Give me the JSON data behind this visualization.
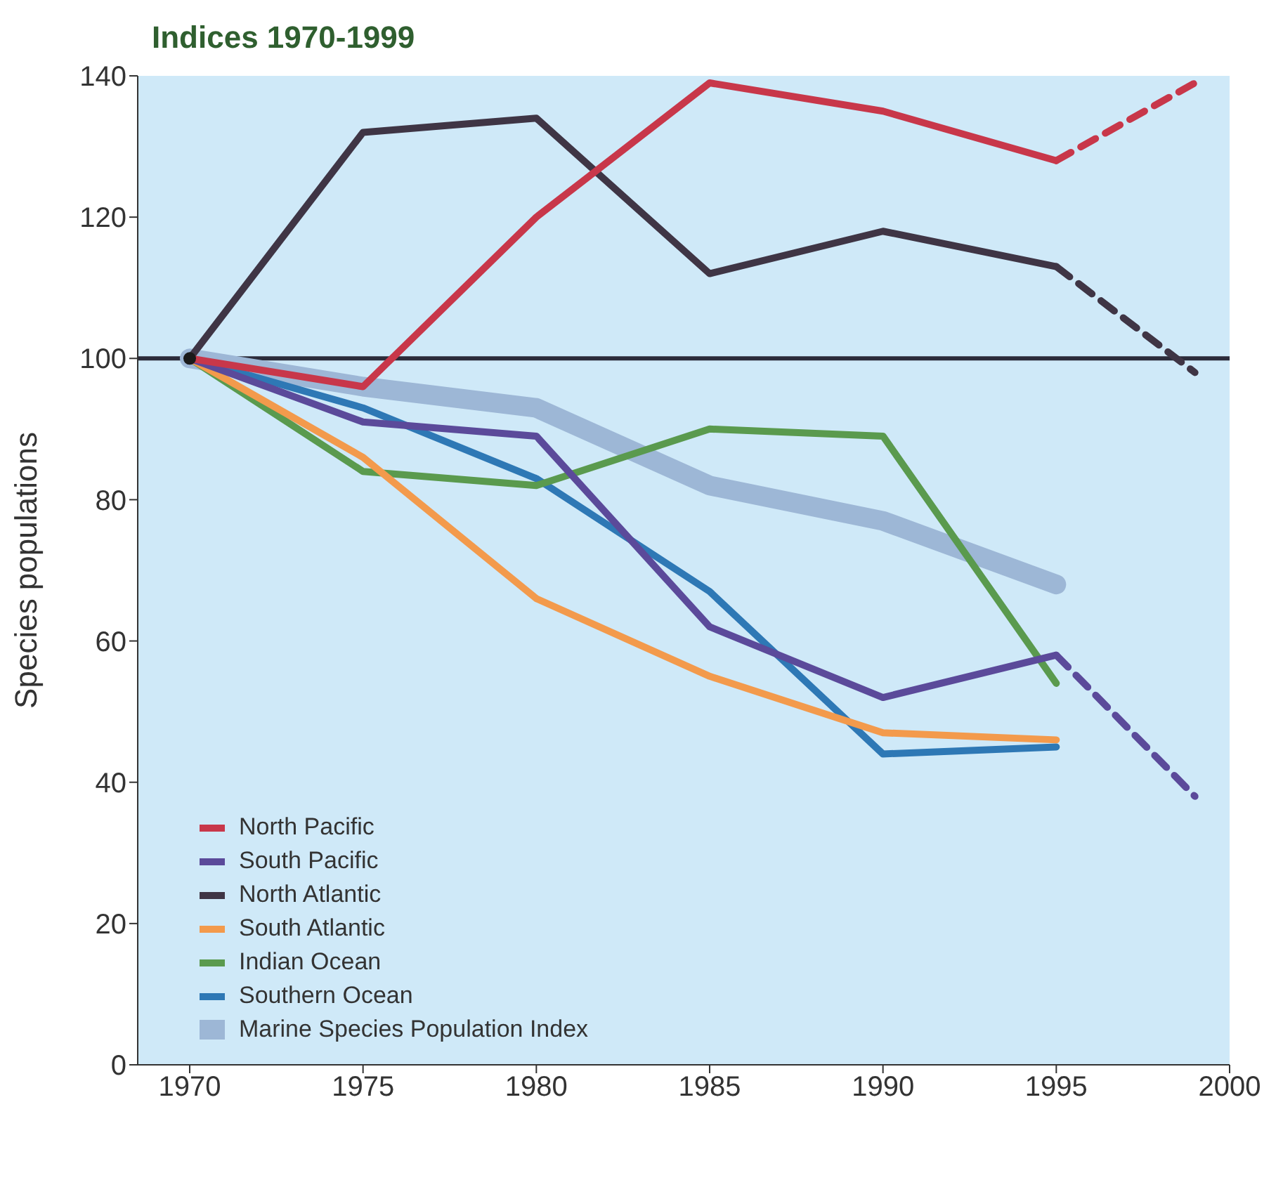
{
  "chart_data": {
    "type": "line",
    "title": "Indices 1970-1999",
    "ylabel": "Species populations",
    "xlim": [
      1968.5,
      2000
    ],
    "xticks": [
      1970,
      1975,
      1980,
      1985,
      1990,
      1995,
      2000
    ],
    "ylim": [
      0,
      140
    ],
    "yticks": [
      0,
      20,
      40,
      60,
      80,
      100,
      120,
      140
    ],
    "marker": "none",
    "legend": "bottom left",
    "ref_lines": [
      {
        "axis": "y",
        "value": 100,
        "color": "#2b2b3a"
      }
    ],
    "series": [
      {
        "name": "North Pacific",
        "color": "#c8374a",
        "x": [
          1970,
          1975,
          1980,
          1985,
          1990,
          1995
        ],
        "values": [
          100,
          96,
          120,
          139,
          135,
          128
        ]
      },
      {
        "name": "South Pacific",
        "color": "#5b4a9a",
        "x": [
          1970,
          1975,
          1980,
          1985,
          1990,
          1995
        ],
        "values": [
          100,
          91,
          89,
          62,
          52,
          58
        ]
      },
      {
        "name": "North Atlantic",
        "color": "#3f3545",
        "x": [
          1970,
          1975,
          1980,
          1985,
          1990,
          1995
        ],
        "values": [
          100,
          132,
          134,
          112,
          118,
          113
        ]
      },
      {
        "name": "South Atlantic",
        "color": "#f39a4c",
        "x": [
          1970,
          1975,
          1980,
          1985,
          1990,
          1995
        ],
        "values": [
          100,
          86,
          66,
          55,
          47,
          46
        ]
      },
      {
        "name": "Indian Ocean",
        "color": "#5a9a4e",
        "x": [
          1970,
          1975,
          1980,
          1985,
          1990,
          1995
        ],
        "values": [
          100,
          84,
          82,
          90,
          89,
          54
        ]
      },
      {
        "name": "Southern Ocean",
        "color": "#2e78b5",
        "x": [
          1970,
          1975,
          1980,
          1985,
          1990,
          1995
        ],
        "values": [
          100,
          93,
          83,
          67,
          44,
          45
        ]
      },
      {
        "name": "Marine Species Population Index",
        "color": "#9db7d6",
        "x": [
          1970,
          1975,
          1980,
          1985,
          1990,
          1995
        ],
        "values": [
          100,
          96,
          93,
          82,
          77,
          68
        ]
      },
      {
        "color": "#c8374a",
        "line_style": "dashed",
        "x": [
          1995,
          1999
        ],
        "values": [
          128,
          139
        ]
      },
      {
        "color": "#3f3545",
        "line_style": "dashed",
        "x": [
          1995,
          1999
        ],
        "values": [
          113,
          98
        ]
      },
      {
        "color": "#5b4a9a",
        "line_style": "dashed",
        "x": [
          1995,
          1999
        ],
        "values": [
          58,
          38
        ]
      },
      {
        "type": "scatter",
        "marker": "circle",
        "color": "#1a1a1a",
        "x": [
          1970
        ],
        "values": [
          100
        ]
      }
    ]
  }
}
